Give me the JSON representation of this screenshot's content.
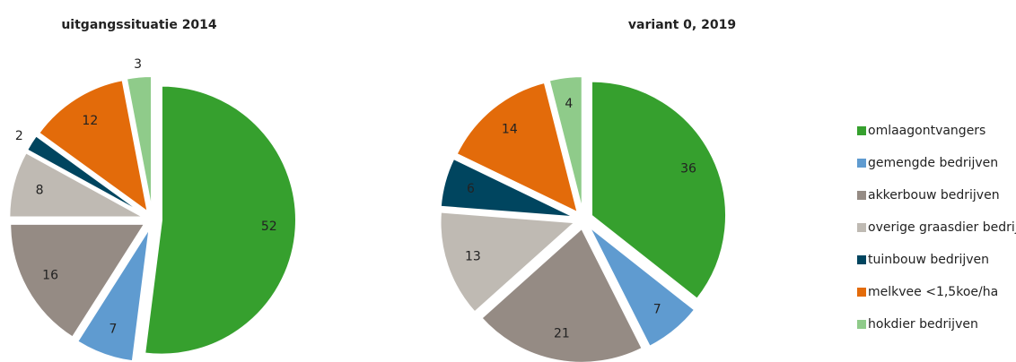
{
  "chart_data": [
    {
      "type": "pie",
      "title": "uitgangssituatie 2014",
      "values": [
        52,
        7,
        16,
        8,
        2,
        12,
        3
      ]
    },
    {
      "type": "pie",
      "title": "variant 0, 2019",
      "values": [
        36,
        7,
        21,
        13,
        6,
        14,
        4
      ]
    }
  ],
  "legend": {
    "categories": [
      "omlaagontvangers",
      "gemengde bedrijven",
      "akkerbouw bedrijven",
      "overige graasdier bedrijven",
      "tuinbouw bedrijven",
      "melkvee <1,5koe/ha",
      "hokdier bedrijven"
    ],
    "colors": [
      "#36a02e",
      "#5f9bd0",
      "#958b84",
      "#bfbab3",
      "#00455f",
      "#e36b0a",
      "#8fcb8a"
    ]
  }
}
